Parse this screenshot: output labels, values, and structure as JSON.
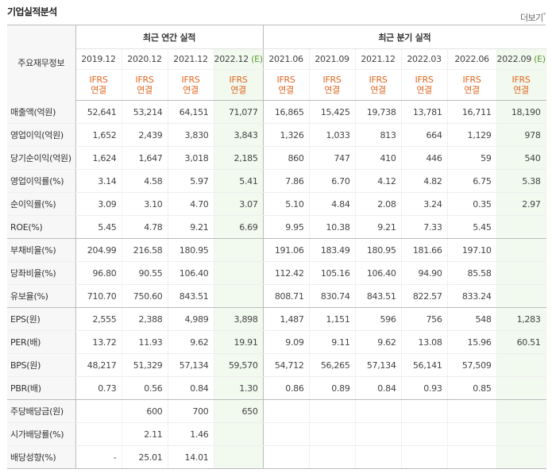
{
  "header": {
    "title": "기업실적분석",
    "more_label": "더보기",
    "more_mark": "*"
  },
  "table": {
    "row_header_label": "주요재무정보",
    "annual_group_label": "최근 연간 실적",
    "quarterly_group_label": "최근 분기 실적",
    "annual_periods": [
      {
        "label": "2019.12",
        "estimate": ""
      },
      {
        "label": "2020.12",
        "estimate": ""
      },
      {
        "label": "2021.12",
        "estimate": ""
      },
      {
        "label": "2022.12",
        "estimate": "(E)"
      }
    ],
    "quarterly_periods": [
      {
        "label": "2021.06",
        "estimate": ""
      },
      {
        "label": "2021.09",
        "estimate": ""
      },
      {
        "label": "2021.12",
        "estimate": ""
      },
      {
        "label": "2022.03",
        "estimate": ""
      },
      {
        "label": "2022.06",
        "estimate": ""
      },
      {
        "label": "2022.09",
        "estimate": "(E)"
      }
    ],
    "standard_line1": "IFRS",
    "standard_line2": "연결",
    "rows": [
      {
        "label": "매출액(억원)",
        "values": [
          "52,641",
          "53,214",
          "64,151",
          "71,077",
          "16,865",
          "15,425",
          "19,738",
          "13,781",
          "16,711",
          "18,190"
        ]
      },
      {
        "label": "영업이익(억원)",
        "values": [
          "1,652",
          "2,439",
          "3,830",
          "3,843",
          "1,326",
          "1,033",
          "813",
          "664",
          "1,129",
          "978"
        ]
      },
      {
        "label": "당기순이익(억원)",
        "values": [
          "1,624",
          "1,647",
          "3,018",
          "2,185",
          "860",
          "747",
          "410",
          "446",
          "59",
          "540"
        ]
      },
      {
        "label": "영업이익률(%)",
        "values": [
          "3.14",
          "4.58",
          "5.97",
          "5.41",
          "7.86",
          "6.70",
          "4.12",
          "4.82",
          "6.75",
          "5.38"
        ]
      },
      {
        "label": "순이익률(%)",
        "values": [
          "3.09",
          "3.10",
          "4.70",
          "3.07",
          "5.10",
          "4.84",
          "2.08",
          "3.24",
          "0.35",
          "2.97"
        ]
      },
      {
        "label": "ROE(%)",
        "values": [
          "5.45",
          "4.78",
          "9.21",
          "6.69",
          "9.95",
          "10.38",
          "9.21",
          "7.33",
          "5.45",
          ""
        ]
      },
      {
        "label": "부채비율(%)",
        "values": [
          "204.99",
          "216.58",
          "180.95",
          "",
          "191.06",
          "183.49",
          "180.95",
          "181.66",
          "197.10",
          ""
        ]
      },
      {
        "label": "당좌비율(%)",
        "values": [
          "96.80",
          "90.55",
          "106.40",
          "",
          "112.42",
          "105.16",
          "106.40",
          "94.90",
          "85.58",
          ""
        ]
      },
      {
        "label": "유보율(%)",
        "values": [
          "710.70",
          "750.60",
          "843.51",
          "",
          "808.71",
          "830.74",
          "843.51",
          "822.57",
          "833.24",
          ""
        ]
      },
      {
        "label": "EPS(원)",
        "values": [
          "2,555",
          "2,388",
          "4,989",
          "3,898",
          "1,487",
          "1,151",
          "596",
          "756",
          "548",
          "1,283"
        ]
      },
      {
        "label": "PER(배)",
        "values": [
          "13.72",
          "11.93",
          "9.62",
          "19.91",
          "9.09",
          "9.11",
          "9.62",
          "13.08",
          "15.96",
          "60.51"
        ]
      },
      {
        "label": "BPS(원)",
        "values": [
          "48,217",
          "51,329",
          "57,134",
          "59,570",
          "54,712",
          "56,265",
          "57,134",
          "56,141",
          "57,509",
          ""
        ]
      },
      {
        "label": "PBR(배)",
        "values": [
          "0.73",
          "0.56",
          "0.84",
          "1.30",
          "0.86",
          "0.89",
          "0.84",
          "0.93",
          "0.85",
          ""
        ]
      },
      {
        "label": "주당배당금(원)",
        "values": [
          "",
          "600",
          "700",
          "650",
          "",
          "",
          "",
          "",
          "",
          ""
        ]
      },
      {
        "label": "시가배당률(%)",
        "values": [
          "",
          "2.11",
          "1.46",
          "",
          "",
          "",
          "",
          "",
          "",
          ""
        ]
      },
      {
        "label": "배당성향(%)",
        "values": [
          "-",
          "25.01",
          "14.01",
          "",
          "",
          "",
          "",
          "",
          "",
          ""
        ]
      }
    ]
  }
}
